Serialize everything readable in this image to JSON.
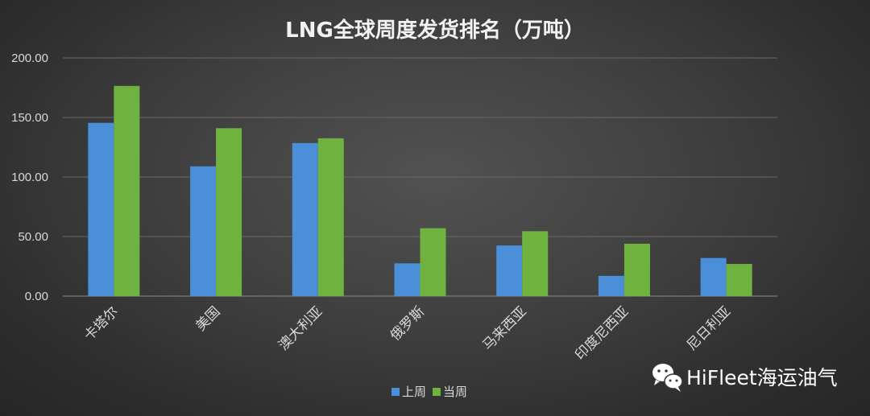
{
  "chart_data": {
    "type": "bar",
    "title": "LNG全球周度发货排名（万吨）",
    "categories": [
      "卡塔尔",
      "美国",
      "澳大利亚",
      "俄罗斯",
      "马来西亚",
      "印度尼西亚",
      "尼日利亚"
    ],
    "series": [
      {
        "name": "上周",
        "color": "#4a8fd8",
        "values": [
          145.5,
          109,
          128.5,
          27.5,
          42.5,
          17,
          32
        ]
      },
      {
        "name": "当周",
        "color": "#6fb23f",
        "values": [
          176.5,
          141,
          132.5,
          57,
          54.5,
          44,
          27
        ]
      }
    ],
    "ylim": [
      0,
      200
    ],
    "yticks": [
      "0.00",
      "50.00",
      "100.00",
      "150.00",
      "200.00"
    ],
    "ytick_values": [
      0,
      50,
      100,
      150,
      200
    ],
    "grid": true,
    "legend_position": "bottom"
  },
  "watermark": {
    "text": "HiFleet海运油气",
    "icon": "wechat-icon"
  }
}
